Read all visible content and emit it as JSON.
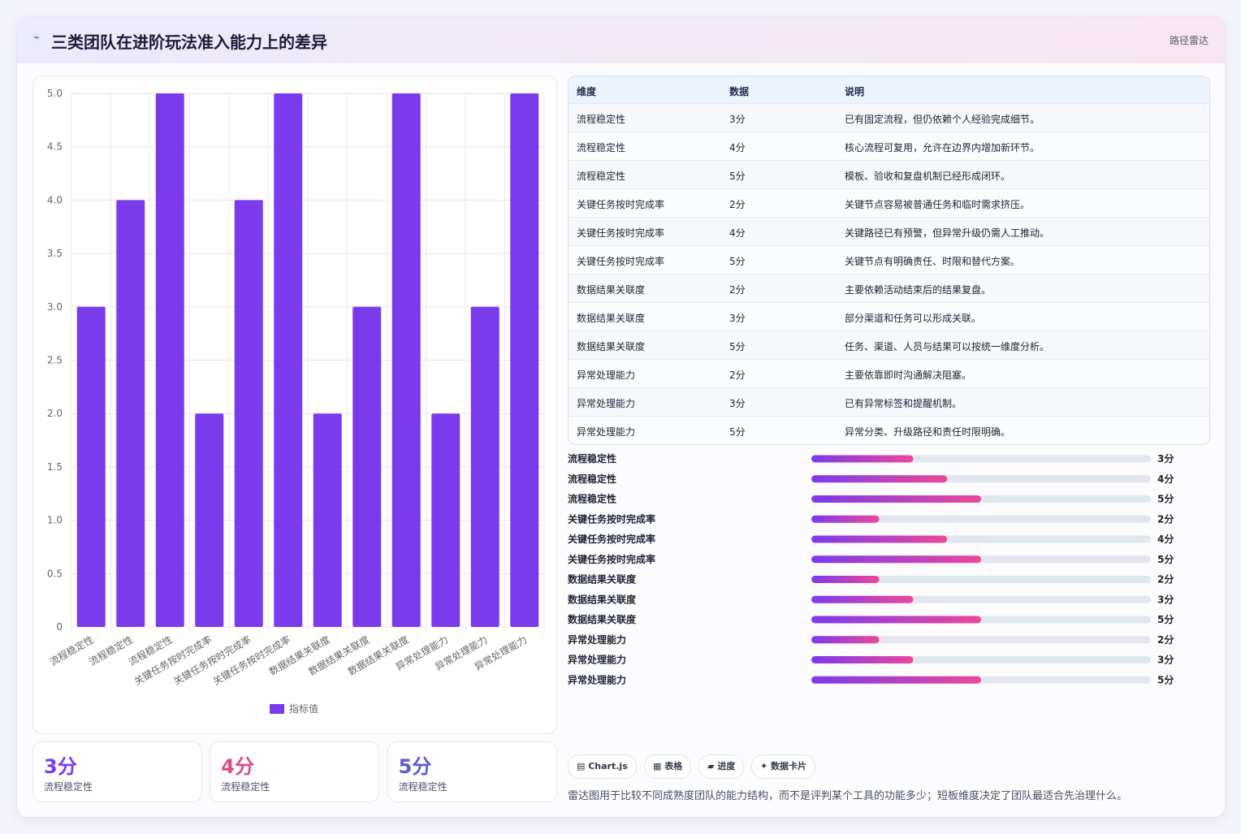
{
  "header": {
    "title": "三类团队在进阶玩法准入能力上的差异",
    "badge": "路径雷达"
  },
  "chart_data": [
    {
      "type": "bar",
      "categories": [
        "流程稳定性",
        "流程稳定性",
        "流程稳定性",
        "关键任务按时完成率",
        "关键任务按时完成率",
        "关键任务按时完成率",
        "数据结果关联度",
        "数据结果关联度",
        "数据结果关联度",
        "异常处理能力",
        "异常处理能力",
        "异常处理能力"
      ],
      "series": [
        {
          "name": "指标值",
          "color": "#7c3aed",
          "values": [
            3,
            4,
            5,
            2,
            4,
            5,
            2,
            3,
            5,
            2,
            3,
            5
          ]
        }
      ],
      "ylim": [
        0,
        5
      ],
      "yticks": [
        0,
        0.5,
        {
          "value": 1,
          "label": "1.0"
        },
        1.5,
        {
          "value": 2,
          "label": "2.0"
        },
        2.5,
        {
          "value": 3,
          "label": "3.0"
        },
        3.5,
        {
          "value": 4,
          "label": "4.0"
        },
        4.5,
        {
          "value": 5,
          "label": "5.0"
        }
      ],
      "grid": true,
      "legend": "bottom"
    },
    {
      "type": "progress",
      "categories": [
        "流程稳定性",
        "流程稳定性",
        "流程稳定性",
        "关键任务按时完成率",
        "关键任务按时完成率",
        "关键任务按时完成率",
        "数据结果关联度",
        "数据结果关联度",
        "数据结果关联度",
        "异常处理能力",
        "异常处理能力",
        "异常处理能力"
      ],
      "values": [
        3,
        4,
        5,
        2,
        4,
        5,
        2,
        3,
        5,
        2,
        3,
        5
      ],
      "value_labels": [
        "3分",
        "4分",
        "5分",
        "2分",
        "4分",
        "5分",
        "2分",
        "3分",
        "5分",
        "2分",
        "3分",
        "5分"
      ],
      "xlim": [
        0,
        10
      ],
      "color": [
        "#7c3aed",
        "#ec4899"
      ]
    }
  ],
  "table": {
    "columns": [
      "维度",
      "数据",
      "说明"
    ],
    "rows": [
      [
        "流程稳定性",
        "3分",
        "已有固定流程，但仍依赖个人经验完成细节。"
      ],
      [
        "流程稳定性",
        "4分",
        "核心流程可复用，允许在边界内增加新环节。"
      ],
      [
        "流程稳定性",
        "5分",
        "模板、验收和复盘机制已经形成闭环。"
      ],
      [
        "关键任务按时完成率",
        "2分",
        "关键节点容易被普通任务和临时需求挤压。"
      ],
      [
        "关键任务按时完成率",
        "4分",
        "关键路径已有预警，但异常升级仍需人工推动。"
      ],
      [
        "关键任务按时完成率",
        "5分",
        "关键节点有明确责任、时限和替代方案。"
      ],
      [
        "数据结果关联度",
        "2分",
        "主要依赖活动结束后的结果复盘。"
      ],
      [
        "数据结果关联度",
        "3分",
        "部分渠道和任务可以形成关联。"
      ],
      [
        "数据结果关联度",
        "5分",
        "任务、渠道、人员与结果可以按统一维度分析。"
      ],
      [
        "异常处理能力",
        "2分",
        "主要依靠即时沟通解决阻塞。"
      ],
      [
        "异常处理能力",
        "3分",
        "已有异常标签和提醒机制。"
      ],
      [
        "异常处理能力",
        "5分",
        "异常分类、升级路径和责任时限明确。"
      ]
    ]
  },
  "cards": [
    {
      "value": "3分",
      "label": "流程稳定性",
      "color": "#7c3aed"
    },
    {
      "value": "4分",
      "label": "流程稳定性",
      "color": "#db4b8a"
    },
    {
      "value": "5分",
      "label": "流程稳定性",
      "color": "#5b5bd6"
    }
  ],
  "tags": [
    "Chart.js",
    "表格",
    "进度",
    "数据卡片"
  ],
  "note": "雷达图用于比较不同成熟度团队的能力结构，而不是评判某个工具的功能多少；短板维度决定了团队最适合先治理什么。"
}
